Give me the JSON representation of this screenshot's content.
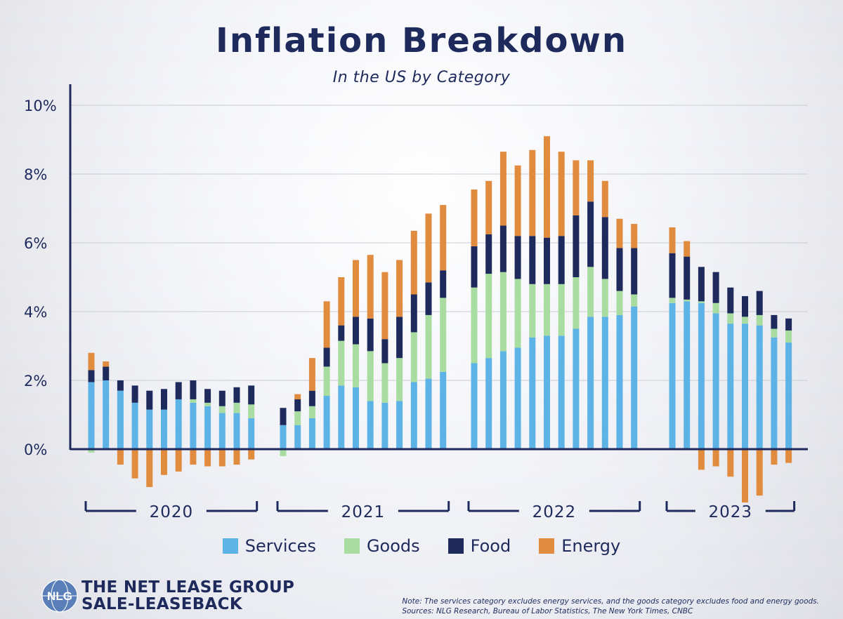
{
  "title": "Inflation Breakdown",
  "subtitle": "In the US by Category",
  "legend": [
    {
      "label": "Services",
      "color": "#5db3e6"
    },
    {
      "label": "Goods",
      "color": "#a8dca0"
    },
    {
      "label": "Food",
      "color": "#1e2a5c"
    },
    {
      "label": "Energy",
      "color": "#e08b3e"
    }
  ],
  "logo": {
    "line1": "THE NET LEASE GROUP",
    "line2": "SALE-LEASEBACK",
    "mark": "NLG"
  },
  "note": {
    "line1": "Note: The services category excludes energy services, and the goods category excludes food and energy goods.",
    "line2": "Sources: NLG Research, Bureau of Labor Statistics, The New York Times, CNBC"
  },
  "chart_data": {
    "type": "bar",
    "stacked": true,
    "ylim": [
      0,
      10
    ],
    "yticks": [
      "0%",
      "2%",
      "4%",
      "6%",
      "8%",
      "10%"
    ],
    "grid": true,
    "legend_position": "bottom",
    "groups": [
      {
        "label": "2020",
        "services": [
          1.95,
          2.0,
          1.7,
          1.35,
          1.15,
          1.15,
          1.45,
          1.35,
          1.25,
          1.05,
          1.05,
          0.9
        ],
        "goods": [
          -0.1,
          0.0,
          0.0,
          0.0,
          0.0,
          0.0,
          0.0,
          0.1,
          0.1,
          0.2,
          0.3,
          0.4
        ],
        "food": [
          0.35,
          0.4,
          0.3,
          0.5,
          0.55,
          0.6,
          0.5,
          0.55,
          0.4,
          0.45,
          0.45,
          0.55
        ],
        "energy": [
          0.5,
          0.15,
          -0.45,
          -0.85,
          -1.1,
          -0.75,
          -0.65,
          -0.45,
          -0.5,
          -0.5,
          -0.45,
          -0.3
        ]
      },
      {
        "label": "2021",
        "services": [
          0.7,
          0.7,
          0.9,
          1.55,
          1.85,
          1.8,
          1.4,
          1.35,
          1.4,
          1.95,
          2.05,
          2.25
        ],
        "goods": [
          -0.2,
          0.4,
          0.35,
          0.85,
          1.3,
          1.25,
          1.45,
          1.15,
          1.25,
          1.45,
          1.85,
          2.15
        ],
        "food": [
          0.5,
          0.35,
          0.45,
          0.55,
          0.45,
          0.8,
          0.95,
          0.7,
          1.2,
          1.1,
          0.95,
          0.8
        ],
        "energy": [
          0.0,
          0.15,
          0.95,
          1.35,
          1.4,
          1.65,
          1.85,
          1.95,
          1.65,
          1.85,
          2.0,
          1.9
        ]
      },
      {
        "label": "2022",
        "services": [
          2.5,
          2.65,
          2.85,
          2.95,
          3.25,
          3.3,
          3.3,
          3.5,
          3.85,
          3.85,
          3.9,
          4.15
        ],
        "goods": [
          2.2,
          2.45,
          2.3,
          2.0,
          1.55,
          1.5,
          1.5,
          1.5,
          1.45,
          1.1,
          0.7,
          0.35
        ],
        "food": [
          1.2,
          1.15,
          1.35,
          1.25,
          1.4,
          1.35,
          1.4,
          1.8,
          1.9,
          1.8,
          1.25,
          1.35
        ],
        "energy": [
          1.65,
          1.55,
          2.15,
          2.05,
          2.5,
          2.95,
          2.45,
          1.6,
          1.2,
          1.05,
          0.85,
          0.7
        ]
      },
      {
        "label": "2023",
        "services": [
          4.25,
          4.3,
          4.25,
          3.95,
          3.65,
          3.65,
          3.6,
          3.25,
          3.1
        ],
        "goods": [
          0.15,
          0.05,
          0.05,
          0.3,
          0.3,
          0.2,
          0.3,
          0.25,
          0.35
        ],
        "food": [
          1.3,
          1.25,
          1.0,
          0.9,
          0.75,
          0.6,
          0.7,
          0.4,
          0.35
        ],
        "energy": [
          0.75,
          0.45,
          -0.6,
          -0.5,
          -0.8,
          -1.55,
          -1.35,
          -0.45,
          -0.4
        ]
      }
    ]
  }
}
